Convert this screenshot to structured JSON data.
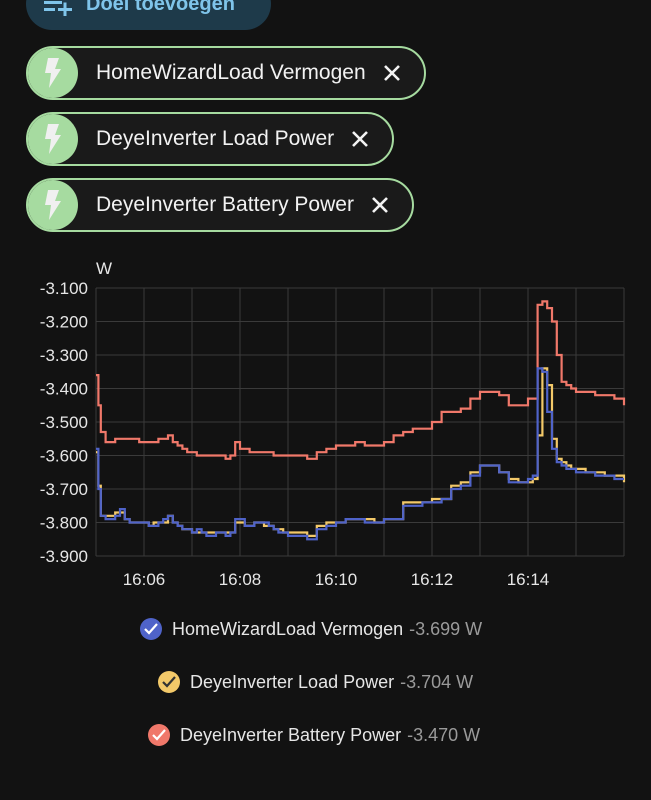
{
  "add_target": {
    "label": "Doel toevoegen",
    "icon": "playlist-plus-icon",
    "color": "#7fc4ea"
  },
  "chips": [
    {
      "label": "HomeWizardLoad Vermogen",
      "icon": "lightning-bolt-icon"
    },
    {
      "label": "DeyeInverter Load Power",
      "icon": "lightning-bolt-icon"
    },
    {
      "label": "DeyeInverter Battery Power",
      "icon": "lightning-bolt-icon"
    }
  ],
  "chip_color": "#a6dba0",
  "chart_data": {
    "type": "line",
    "unit": "W",
    "ylim": [
      -3900,
      -3100
    ],
    "yticks": [
      "-3.100",
      "-3.200",
      "-3.300",
      "-3.400",
      "-3.500",
      "-3.600",
      "-3.700",
      "-3.800",
      "-3.900"
    ],
    "xlim": [
      "16:05:00",
      "16:16:00"
    ],
    "xticks": [
      "16:06",
      "16:08",
      "16:10",
      "16:12",
      "16:14"
    ],
    "grid": true,
    "step": true,
    "x_minutes_after_16": [
      5.0,
      5.05,
      5.1,
      5.2,
      5.3,
      5.4,
      5.5,
      5.6,
      5.7,
      5.8,
      5.9,
      6.0,
      6.1,
      6.2,
      6.3,
      6.4,
      6.5,
      6.6,
      6.7,
      6.8,
      6.9,
      7.0,
      7.1,
      7.2,
      7.3,
      7.4,
      7.5,
      7.6,
      7.7,
      7.8,
      7.9,
      8.0,
      8.1,
      8.2,
      8.3,
      8.4,
      8.5,
      8.6,
      8.7,
      8.8,
      8.9,
      9.0,
      9.2,
      9.4,
      9.6,
      9.8,
      10.0,
      10.2,
      10.4,
      10.6,
      10.8,
      11.0,
      11.2,
      11.4,
      11.6,
      11.8,
      12.0,
      12.2,
      12.4,
      12.6,
      12.8,
      13.0,
      13.2,
      13.4,
      13.6,
      13.8,
      14.0,
      14.1,
      14.2,
      14.3,
      14.4,
      14.5,
      14.6,
      14.7,
      14.8,
      14.9,
      15.0,
      15.2,
      15.4,
      15.6,
      15.8,
      16.0
    ],
    "series": [
      {
        "name": "HomeWizardLoad Vermogen",
        "current": "-3.699 W",
        "color": "#4f63c9",
        "values": [
          -3580,
          -3700,
          -3780,
          -3790,
          -3790,
          -3780,
          -3760,
          -3790,
          -3800,
          -3800,
          -3800,
          -3800,
          -3810,
          -3810,
          -3800,
          -3790,
          -3780,
          -3800,
          -3810,
          -3820,
          -3820,
          -3830,
          -3820,
          -3830,
          -3840,
          -3840,
          -3830,
          -3830,
          -3840,
          -3830,
          -3790,
          -3790,
          -3810,
          -3810,
          -3800,
          -3800,
          -3800,
          -3810,
          -3820,
          -3830,
          -3830,
          -3840,
          -3840,
          -3850,
          -3820,
          -3810,
          -3800,
          -3790,
          -3790,
          -3800,
          -3800,
          -3790,
          -3790,
          -3750,
          -3750,
          -3740,
          -3740,
          -3730,
          -3700,
          -3690,
          -3660,
          -3630,
          -3630,
          -3650,
          -3680,
          -3680,
          -3670,
          -3660,
          -3340,
          -3350,
          -3470,
          -3580,
          -3620,
          -3630,
          -3640,
          -3640,
          -3650,
          -3650,
          -3660,
          -3660,
          -3670,
          -3670
        ]
      },
      {
        "name": "DeyeInverter Load Power",
        "current": "-3.704 W",
        "color": "#f3c969",
        "values": [
          -3590,
          -3690,
          -3780,
          -3780,
          -3780,
          -3770,
          -3770,
          -3790,
          -3800,
          -3800,
          -3800,
          -3800,
          -3810,
          -3800,
          -3800,
          -3800,
          -3780,
          -3800,
          -3810,
          -3820,
          -3820,
          -3830,
          -3830,
          -3830,
          -3830,
          -3830,
          -3830,
          -3830,
          -3830,
          -3830,
          -3800,
          -3800,
          -3810,
          -3810,
          -3800,
          -3800,
          -3810,
          -3810,
          -3820,
          -3820,
          -3830,
          -3830,
          -3830,
          -3840,
          -3810,
          -3800,
          -3800,
          -3790,
          -3790,
          -3790,
          -3800,
          -3790,
          -3790,
          -3740,
          -3740,
          -3740,
          -3730,
          -3730,
          -3690,
          -3680,
          -3650,
          -3630,
          -3630,
          -3650,
          -3670,
          -3680,
          -3680,
          -3670,
          -3540,
          -3340,
          -3390,
          -3550,
          -3610,
          -3620,
          -3630,
          -3640,
          -3640,
          -3650,
          -3650,
          -3660,
          -3660,
          -3680
        ]
      },
      {
        "name": "DeyeInverter Battery Power",
        "current": "-3.470 W",
        "color": "#f0786a",
        "values": [
          -3360,
          -3450,
          -3530,
          -3560,
          -3560,
          -3550,
          -3550,
          -3550,
          -3550,
          -3550,
          -3560,
          -3560,
          -3560,
          -3560,
          -3550,
          -3550,
          -3540,
          -3560,
          -3570,
          -3580,
          -3590,
          -3590,
          -3600,
          -3600,
          -3600,
          -3600,
          -3600,
          -3600,
          -3610,
          -3600,
          -3560,
          -3580,
          -3580,
          -3590,
          -3590,
          -3590,
          -3590,
          -3590,
          -3600,
          -3600,
          -3600,
          -3600,
          -3600,
          -3610,
          -3590,
          -3580,
          -3570,
          -3570,
          -3560,
          -3570,
          -3570,
          -3560,
          -3540,
          -3530,
          -3520,
          -3520,
          -3500,
          -3470,
          -3470,
          -3460,
          -3430,
          -3410,
          -3410,
          -3420,
          -3450,
          -3450,
          -3430,
          -3430,
          -3150,
          -3140,
          -3160,
          -3200,
          -3300,
          -3380,
          -3390,
          -3400,
          -3410,
          -3410,
          -3420,
          -3420,
          -3430,
          -3450
        ]
      }
    ]
  },
  "legend_check_icon": "checkmark-icon"
}
